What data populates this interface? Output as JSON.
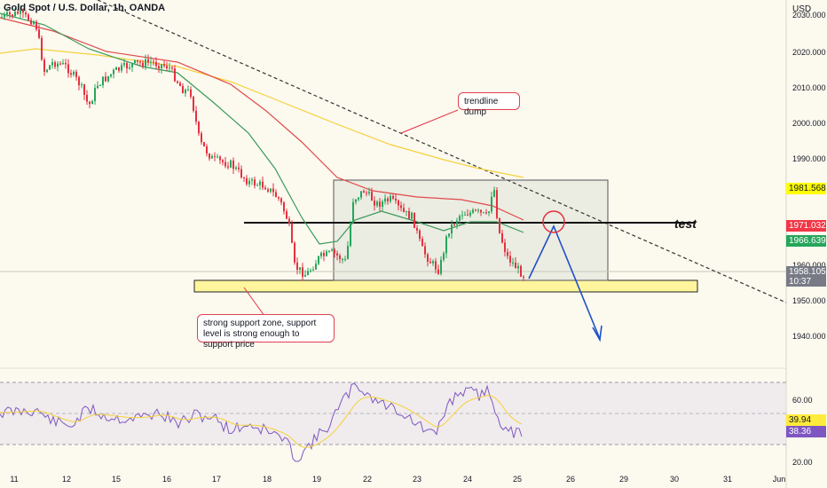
{
  "chart_title": "Gold Spot / U.S. Dollar, 1h, OANDA",
  "currency": "USD",
  "price_axis": [
    "2020.000",
    "2010.000",
    "2000.000",
    "1990.000",
    "1960.000",
    "1950.000",
    "1940.000"
  ],
  "price_top_partial": "2030.000",
  "date_axis": [
    "11",
    "12",
    "15",
    "16",
    "17",
    "18",
    "19",
    "22",
    "23",
    "24",
    "25",
    "26",
    "29",
    "30",
    "31",
    "Jun"
  ],
  "badges": {
    "ma_yellow": {
      "value": "1981.568",
      "bg": "#ffff00",
      "fg": "#131722"
    },
    "ma_red": {
      "value": "1971.032",
      "bg": "#f23645",
      "fg": "#ffffff"
    },
    "ma_green": {
      "value": "1966.639",
      "bg": "#26a65b",
      "fg": "#ffffff"
    },
    "last_price": {
      "value": "1958.105",
      "countdown": "10:37",
      "bg": "#787b86",
      "fg": "#ffffff"
    }
  },
  "annotations": {
    "trendline_label": "trendline dump",
    "test_label": "test",
    "support_label": "strong support zone, support level is strong enough to support price"
  },
  "rsi": {
    "axis": [
      "60.00",
      "20.00"
    ],
    "value_badge": "39.94",
    "signal_badge": "38.36",
    "value_color": "#ffeb3b",
    "signal_color": "#7e57c2"
  },
  "colors": {
    "up_candle": "#26a65b",
    "down_candle": "#e5303f",
    "support_zone": "#fff59d",
    "range_box": "#d8dcd2",
    "forecast_arrow": "#1e50c8",
    "circle": "#e5303f"
  }
}
